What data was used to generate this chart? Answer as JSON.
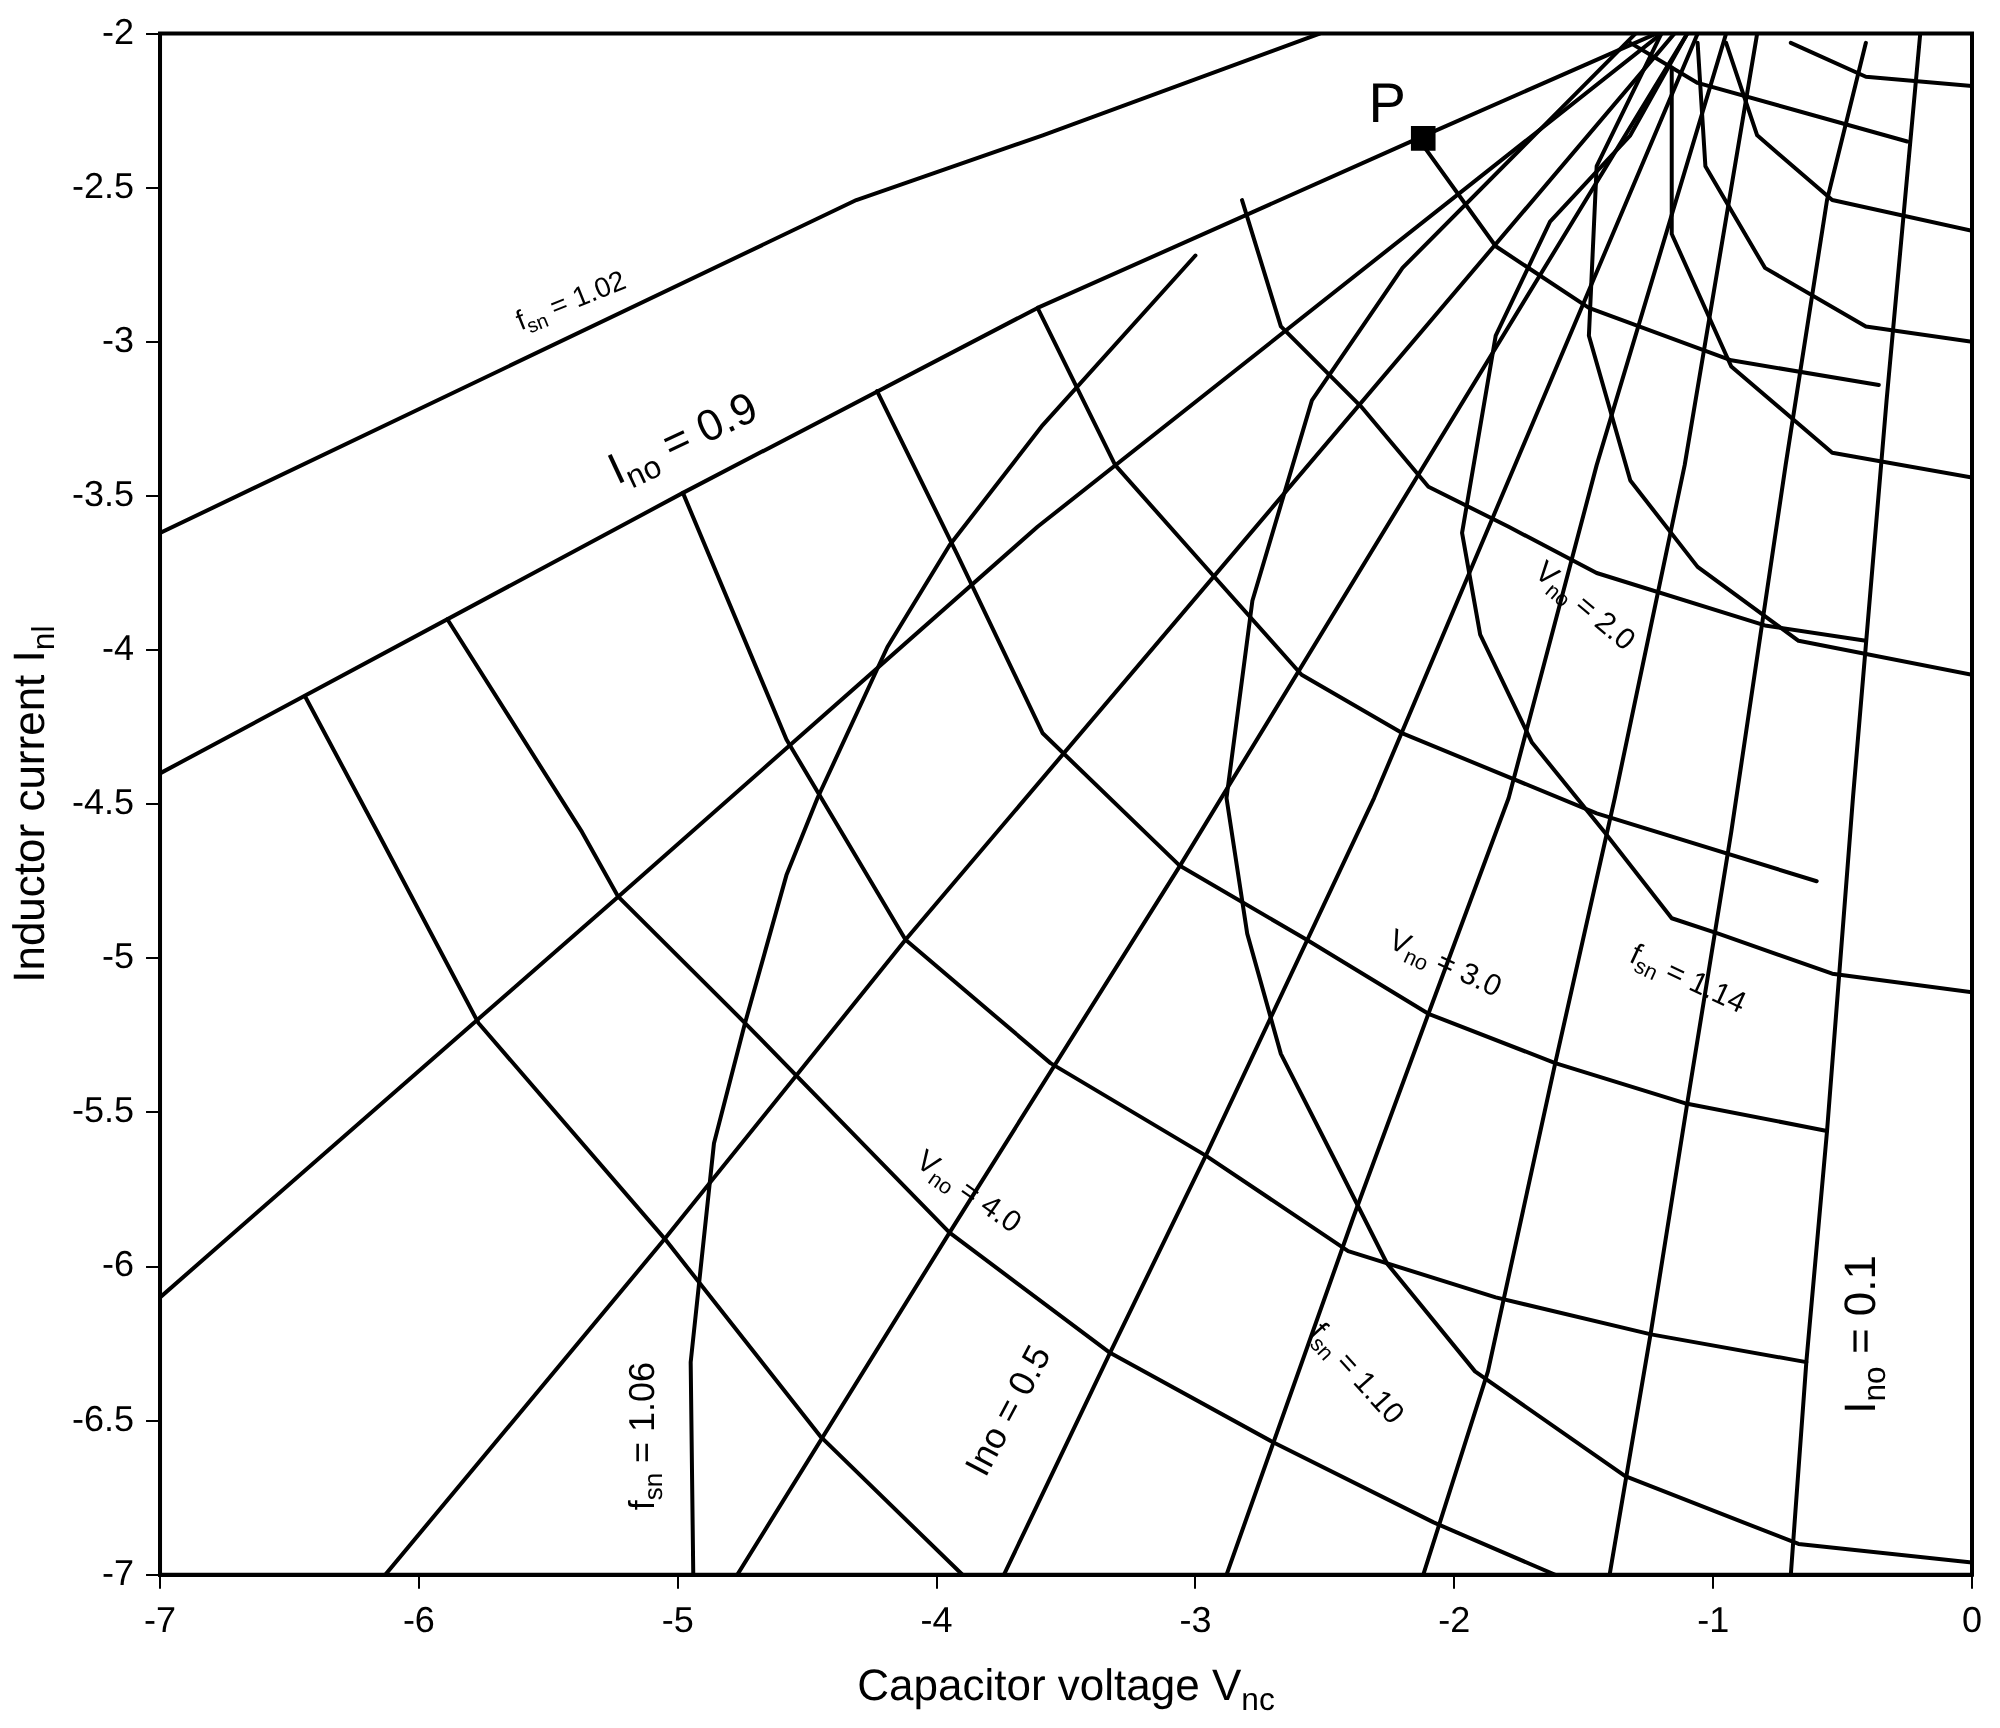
{
  "chart_data": {
    "type": "line",
    "xlabel": "Capacitor voltage V$_{nc}$",
    "ylabel": "Inductor current I$_{nl}$",
    "xlim": [
      -7,
      0
    ],
    "xticks": [
      -7,
      -6,
      -5,
      -4,
      -3,
      -2,
      -1,
      0
    ],
    "ylim": [
      -7,
      -2
    ],
    "yticks": [
      -7,
      -6.5,
      -6,
      -5.5,
      -5,
      -4.5,
      -4,
      -3.5,
      -3,
      -2.5,
      -2
    ],
    "grid": false,
    "legend": false,
    "marker": "none",
    "line_style": "solid",
    "series": [
      {
        "color": "#000000",
        "x": [
          -7,
          -4.98,
          -3.61,
          -2.14,
          -1.22
        ],
        "values": [
          -4.4,
          -3.49,
          -2.89,
          -2.34,
          -2.0
        ]
      },
      {
        "color": "#000000",
        "x": [
          -7,
          -5.23,
          -3.61,
          -1.2
        ],
        "values": [
          -6.1,
          -4.8,
          -3.6,
          -2.0
        ]
      },
      {
        "color": "#000000",
        "x": [
          -6.13,
          -5.05,
          -4.12,
          -1.15
        ],
        "values": [
          -7,
          -5.91,
          -4.94,
          -2.0
        ]
      },
      {
        "color": "#000000",
        "x": [
          -4.77,
          -3.95,
          -3.06,
          -1.1
        ],
        "values": [
          -7,
          -5.89,
          -4.7,
          -2.0
        ]
      },
      {
        "color": "#000000",
        "x": [
          -3.74,
          -3.33,
          -2.96,
          -2.31,
          -1.06
        ],
        "values": [
          -7,
          -6.28,
          -5.64,
          -4.48,
          -2.0
        ]
      },
      {
        "color": "#000000",
        "x": [
          -2.88,
          -2.39,
          -2.1,
          -1.79,
          -1.45,
          -0.95
        ],
        "values": [
          -7,
          -5.84,
          -5.18,
          -4.48,
          -3.4,
          -2.0
        ]
      },
      {
        "color": "#000000",
        "x": [
          -2.12,
          -1.87,
          -1.61,
          -1.38,
          -1.11,
          -0.83
        ],
        "values": [
          -7,
          -6.34,
          -5.34,
          -4.48,
          -3.4,
          -2.0
        ]
      },
      {
        "color": "#000000",
        "x": [
          -1.4,
          -1.24,
          -1.1,
          -0.93,
          -0.72,
          -0.56,
          -0.41
        ],
        "values": [
          -7,
          -6.21,
          -5.47,
          -4.59,
          -3.4,
          -2.54,
          -2.03
        ]
      },
      {
        "color": "#000000",
        "x": [
          -0.7,
          -0.64,
          -0.56,
          -0.46,
          -0.33,
          -0.2
        ],
        "values": [
          -7,
          -6.31,
          -5.56,
          -4.48,
          -3.19,
          -2.0
        ]
      },
      {
        "color": "#000000",
        "x": [
          -7,
          -4.31,
          -3.59,
          -2.52
        ],
        "values": [
          -3.62,
          -2.54,
          -2.33,
          -2.0
        ]
      },
      {
        "color": "#000000",
        "x": [
          -6.44,
          -6.16,
          -5.77,
          -5.05,
          -4.45,
          -3.9
        ],
        "values": [
          -4.15,
          -4.59,
          -5.21,
          -5.91,
          -6.55,
          -7
        ]
      },
      {
        "color": "#000000",
        "x": [
          -5.89,
          -5.37,
          -5.23,
          -4.74,
          -3.95,
          -3.33,
          -2.7,
          -2.08,
          -1.61
        ],
        "values": [
          -3.9,
          -4.59,
          -4.8,
          -5.21,
          -5.89,
          -6.28,
          -6.57,
          -6.83,
          -7
        ]
      },
      {
        "color": "#000000",
        "x": [
          -4.98,
          -4.58,
          -4.12,
          -3.56,
          -2.96,
          -2.41,
          -1.84,
          -1.24,
          -0.64
        ],
        "values": [
          -3.49,
          -4.29,
          -4.94,
          -5.34,
          -5.64,
          -5.95,
          -6.1,
          -6.22,
          -6.31
        ]
      },
      {
        "color": "#000000",
        "x": [
          -4.23,
          -3.92,
          -3.59,
          -3.06,
          -2.57,
          -2.1,
          -1.61,
          -1.11,
          -0.56
        ],
        "values": [
          -3.16,
          -3.69,
          -4.27,
          -4.7,
          -4.94,
          -5.18,
          -5.34,
          -5.47,
          -5.56
        ]
      },
      {
        "color": "#000000",
        "x": [
          -3.61,
          -3.31,
          -2.94,
          -2.59,
          -2.2,
          -1.45,
          -0.6
        ],
        "values": [
          -2.89,
          -3.4,
          -3.75,
          -4.08,
          -4.27,
          -4.53,
          -4.75
        ]
      },
      {
        "color": "#000000",
        "x": [
          -2.82,
          -2.67,
          -2.36,
          -2.1,
          -1.79,
          -1.45,
          -0.8,
          -0.41
        ],
        "values": [
          -2.54,
          -2.95,
          -3.21,
          -3.47,
          -3.6,
          -3.75,
          -3.92,
          -3.97
        ]
      },
      {
        "color": "#000000",
        "x": [
          -2.14,
          -1.84,
          -1.48,
          -0.93,
          -0.36
        ],
        "values": [
          -2.34,
          -2.69,
          -2.89,
          -3.06,
          -3.14
        ]
      },
      {
        "color": "#000000",
        "x": [
          -1.32,
          -1.06,
          -0.25
        ],
        "values": [
          -2.03,
          -2.16,
          -2.35
        ]
      },
      {
        "color": "#000000",
        "x": [
          -4.94,
          -4.95,
          -4.86,
          -4.74,
          -4.58,
          -4.46,
          -4.19,
          -3.95,
          -3.59,
          -3.0
        ],
        "values": [
          -7,
          -6.31,
          -5.6,
          -5.21,
          -4.73,
          -4.48,
          -3.99,
          -3.66,
          -3.27,
          -2.72
        ]
      },
      {
        "color": "#000000",
        "x": [
          -1.3,
          -2.2,
          -2.55,
          -2.78,
          -2.88,
          -2.8,
          -2.67,
          -2.44,
          -2.26,
          -1.92,
          -1.34,
          -0.67,
          0
        ],
        "values": [
          -2.0,
          -2.76,
          -3.19,
          -3.84,
          -4.48,
          -4.92,
          -5.31,
          -5.69,
          -5.99,
          -6.34,
          -6.68,
          -6.9,
          -6.96
        ]
      },
      {
        "color": "#000000",
        "x": [
          -1.1,
          -1.32,
          -1.63,
          -1.84,
          -1.97,
          -1.9,
          -1.7,
          -1.42,
          -1.16,
          -0.98,
          -0.54,
          0
        ],
        "values": [
          -2.0,
          -2.33,
          -2.61,
          -2.98,
          -3.62,
          -3.95,
          -4.3,
          -4.59,
          -4.87,
          -4.92,
          -5.05,
          -5.11
        ]
      },
      {
        "color": "#000000",
        "x": [
          -1.2,
          -1.45,
          -1.48,
          -1.32,
          -1.06,
          -0.67,
          0
        ],
        "values": [
          -2.0,
          -2.43,
          -2.98,
          -3.45,
          -3.73,
          -3.97,
          -4.08
        ]
      },
      {
        "color": "#000000",
        "x": [
          -1.16,
          -1.16,
          -0.93,
          -0.54,
          0
        ],
        "values": [
          -2.11,
          -2.65,
          -3.08,
          -3.36,
          -3.44
        ]
      },
      {
        "color": "#000000",
        "x": [
          -1.06,
          -1.03,
          -0.8,
          -0.41,
          0
        ],
        "values": [
          -2.03,
          -2.43,
          -2.76,
          -2.95,
          -3.0
        ]
      },
      {
        "color": "#000000",
        "x": [
          -0.95,
          -0.83,
          -0.54,
          0
        ],
        "values": [
          -2.03,
          -2.33,
          -2.54,
          -2.64
        ]
      },
      {
        "color": "#000000",
        "x": [
          -0.7,
          -0.41,
          0
        ],
        "values": [
          -2.03,
          -2.14,
          -2.17
        ]
      },
      {
        "type": "scatter",
        "name": "P",
        "marker": "square",
        "color": "#000000",
        "x": [
          -2.12
        ],
        "values": [
          -2.34
        ]
      }
    ],
    "annotations": [
      "f$_{sn}$ = 1.02",
      "I$_{no}$ = 0.9",
      "V$_{no}$ = 2.0",
      "V$_{no}$ = 3.0",
      "V$_{no}$ = 4.0",
      "f$_{sn}$ = 1.14",
      "f$_{sn}$ = 1.10",
      "f$_{sn}$ = 1.06",
      "Ino = 0.5",
      "I$_{no}$ = 0.1"
    ]
  }
}
